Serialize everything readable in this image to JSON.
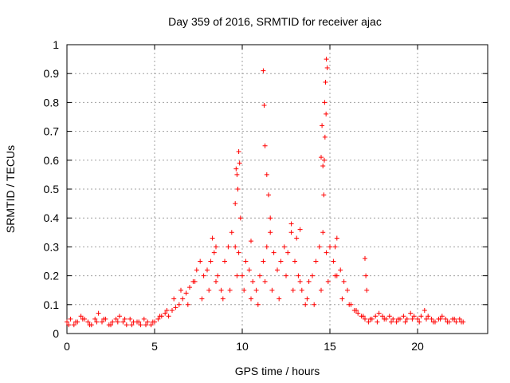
{
  "chart_data": {
    "type": "scatter",
    "title": "Day 359 of 2016, SRMTID for receiver ajac",
    "xlabel": "GPS time / hours",
    "ylabel": "SRMTID / TECUs",
    "xlim": [
      0,
      24
    ],
    "ylim": [
      0,
      1
    ],
    "xticks": [
      0,
      5,
      10,
      15,
      20
    ],
    "xtick_labels": [
      "0",
      "5",
      "10",
      "15",
      "20"
    ],
    "yticks": [
      0,
      0.1,
      0.2,
      0.3,
      0.4,
      0.5,
      0.6,
      0.7,
      0.8,
      0.9,
      1
    ],
    "ytick_labels": [
      "0",
      "0.1",
      "0.2",
      "0.3",
      "0.4",
      "0.5",
      "0.6",
      "0.7",
      "0.8",
      "0.9",
      "1"
    ],
    "grid": true,
    "marker": "+",
    "series": [
      {
        "name": "SRMTID",
        "color": "#ff0000",
        "x": [
          0.0,
          0.2,
          0.4,
          0.6,
          0.8,
          1.0,
          1.2,
          1.4,
          1.6,
          1.8,
          2.0,
          2.2,
          2.4,
          2.6,
          2.8,
          3.0,
          3.2,
          3.4,
          3.6,
          3.8,
          4.0,
          4.2,
          4.4,
          4.6,
          4.8,
          5.0,
          5.2,
          5.4,
          5.6,
          5.8,
          6.0,
          6.2,
          6.4,
          6.6,
          6.8,
          7.0,
          7.2,
          7.4,
          7.6,
          7.8,
          8.0,
          8.2,
          8.4,
          8.6,
          8.8,
          9.0,
          9.2,
          9.4,
          9.6,
          9.8,
          10.0,
          10.2,
          10.4,
          10.6,
          10.8,
          11.0,
          11.2,
          11.4,
          11.6,
          11.8,
          12.0,
          12.2,
          12.4,
          12.6,
          12.8,
          13.0,
          13.2,
          13.4,
          13.6,
          13.8,
          14.0,
          14.2,
          14.4,
          14.6,
          14.8,
          15.0,
          15.2,
          15.4,
          15.6,
          15.8,
          16.0,
          16.2,
          16.4,
          16.6,
          16.8,
          17.0,
          17.2,
          17.4,
          17.6,
          17.8,
          18.0,
          18.2,
          18.4,
          18.6,
          18.8,
          19.0,
          19.2,
          19.4,
          19.6,
          19.8,
          20.0,
          20.2,
          20.4,
          20.6,
          20.8,
          21.0,
          21.2,
          21.4,
          21.6,
          21.8,
          22.0,
          22.2,
          22.4,
          22.6,
          0.1,
          0.5,
          0.9,
          1.3,
          1.7,
          2.1,
          2.5,
          2.9,
          3.3,
          3.7,
          4.1,
          4.5,
          4.9,
          5.3,
          5.7,
          6.1,
          6.5,
          6.9,
          7.3,
          7.7,
          8.1,
          8.5,
          8.9,
          9.3,
          9.7,
          10.1,
          10.5,
          10.9,
          11.3,
          11.7,
          12.1,
          12.5,
          12.9,
          13.3,
          13.7,
          14.1,
          14.5,
          14.9,
          15.3,
          15.7,
          16.1,
          16.5,
          16.9,
          17.3,
          17.7,
          18.1,
          18.5,
          18.9,
          19.3,
          19.7,
          20.1,
          20.5,
          20.9,
          21.3,
          21.7,
          22.1,
          22.5,
          9.6,
          9.7,
          9.8,
          9.75,
          9.85,
          9.9,
          9.65,
          11.2,
          11.25,
          11.3,
          11.4,
          11.5,
          11.6,
          14.5,
          14.55,
          14.6,
          14.65,
          14.7,
          14.75,
          14.8,
          14.85,
          14.78,
          14.72,
          14.68,
          15.3,
          15.4,
          17.0,
          17.05,
          17.1,
          8.3,
          8.5,
          10.5,
          12.8,
          13.1,
          13.3
        ],
        "y": [
          0.04,
          0.05,
          0.03,
          0.04,
          0.06,
          0.05,
          0.04,
          0.03,
          0.05,
          0.07,
          0.04,
          0.05,
          0.03,
          0.04,
          0.05,
          0.06,
          0.04,
          0.03,
          0.05,
          0.04,
          0.04,
          0.03,
          0.05,
          0.04,
          0.03,
          0.04,
          0.05,
          0.06,
          0.07,
          0.06,
          0.08,
          0.09,
          0.1,
          0.12,
          0.14,
          0.16,
          0.18,
          0.22,
          0.25,
          0.2,
          0.22,
          0.25,
          0.28,
          0.2,
          0.15,
          0.25,
          0.3,
          0.35,
          0.3,
          0.28,
          0.2,
          0.25,
          0.22,
          0.18,
          0.15,
          0.2,
          0.25,
          0.3,
          0.35,
          0.28,
          0.22,
          0.25,
          0.3,
          0.28,
          0.35,
          0.25,
          0.2,
          0.15,
          0.1,
          0.18,
          0.2,
          0.25,
          0.3,
          0.35,
          0.28,
          0.3,
          0.25,
          0.2,
          0.22,
          0.18,
          0.15,
          0.1,
          0.08,
          0.07,
          0.06,
          0.05,
          0.04,
          0.05,
          0.06,
          0.07,
          0.06,
          0.05,
          0.06,
          0.05,
          0.04,
          0.05,
          0.06,
          0.05,
          0.07,
          0.06,
          0.05,
          0.06,
          0.08,
          0.06,
          0.05,
          0.04,
          0.05,
          0.06,
          0.05,
          0.04,
          0.05,
          0.04,
          0.05,
          0.04,
          0.03,
          0.04,
          0.05,
          0.03,
          0.04,
          0.05,
          0.03,
          0.04,
          0.05,
          0.03,
          0.04,
          0.03,
          0.04,
          0.06,
          0.08,
          0.12,
          0.15,
          0.1,
          0.18,
          0.12,
          0.15,
          0.18,
          0.12,
          0.15,
          0.2,
          0.15,
          0.12,
          0.1,
          0.18,
          0.15,
          0.12,
          0.2,
          0.15,
          0.18,
          0.12,
          0.1,
          0.15,
          0.18,
          0.2,
          0.12,
          0.1,
          0.08,
          0.06,
          0.05,
          0.04,
          0.05,
          0.04,
          0.05,
          0.04,
          0.05,
          0.04,
          0.05,
          0.04,
          0.05,
          0.04,
          0.05,
          0.04,
          0.45,
          0.55,
          0.63,
          0.5,
          0.59,
          0.4,
          0.57,
          0.91,
          0.79,
          0.65,
          0.55,
          0.48,
          0.4,
          0.61,
          0.72,
          0.58,
          0.48,
          0.8,
          0.87,
          0.95,
          0.92,
          0.76,
          0.68,
          0.6,
          0.3,
          0.33,
          0.26,
          0.2,
          0.15,
          0.33,
          0.3,
          0.32,
          0.38,
          0.33,
          0.36
        ]
      }
    ]
  }
}
